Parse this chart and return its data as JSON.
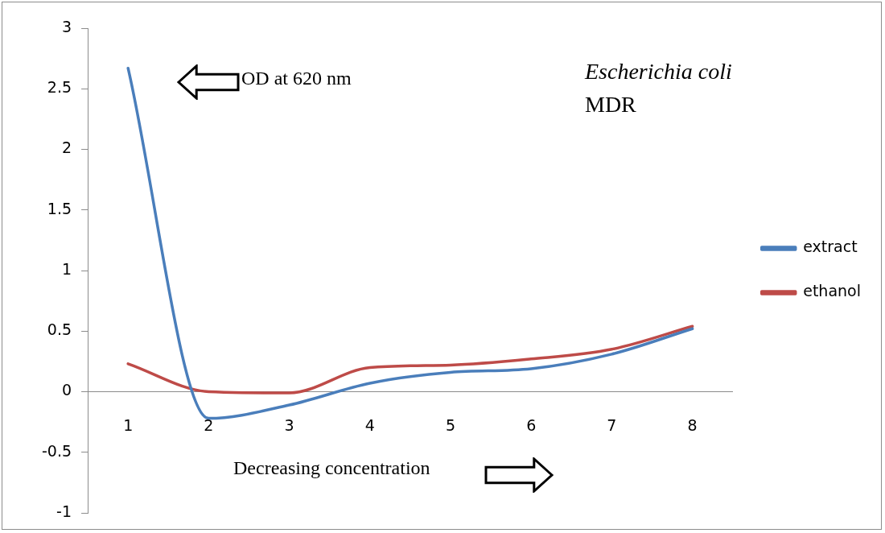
{
  "chart_data": {
    "type": "line",
    "categories": [
      "1",
      "2",
      "3",
      "4",
      "5",
      "6",
      "7",
      "8"
    ],
    "series": [
      {
        "name": "extract",
        "color": "#4a7ebb",
        "values": [
          2.67,
          -0.22,
          -0.11,
          0.07,
          0.16,
          0.19,
          0.31,
          0.52
        ]
      },
      {
        "name": "ethanol",
        "color": "#be4b48",
        "values": [
          0.23,
          0.0,
          -0.01,
          0.2,
          0.22,
          0.27,
          0.35,
          0.54
        ]
      }
    ],
    "ylim": [
      -1,
      3
    ],
    "yticks": [
      -1,
      -0.5,
      0,
      0.5,
      1,
      1.5,
      2,
      2.5,
      3
    ],
    "grid": false,
    "legend": "right",
    "marker": "none",
    "line_style": "solid",
    "annotations": [
      "OD at 620 nm",
      "Decreasing concentration",
      "Escherichia coli",
      "MDR"
    ]
  }
}
